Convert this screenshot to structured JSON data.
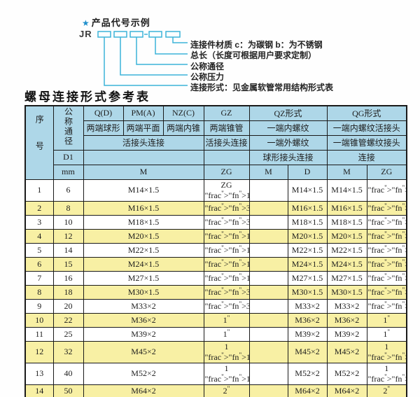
{
  "diagram": {
    "star": "★",
    "title": "产品代号示例",
    "prefix": "JR",
    "labels": [
      "连接件材质  c：为碳钢  b：为不锈钢",
      "总长（长度可根据用户要求定制）",
      "公称通径",
      "公称压力",
      "连接形式：见金属软管常用结构形式表"
    ]
  },
  "table": {
    "title": "螺母连接形式参考表",
    "header": {
      "seq": "序号",
      "nominal_diameter": "公称通径",
      "d1": "D1",
      "mm": "mm",
      "q_d": "Q(D)",
      "pm_a": "PM(A)",
      "nz_c": "NZ(C)",
      "gz": "GZ",
      "qz": "QZ形式",
      "qg": "QG形式",
      "q_sub": "两端球形",
      "pm_sub": "两端平面",
      "nz_sub": "两端内锥",
      "gz_sub": "两端锥管",
      "qz_sub1": "一端内螺纹",
      "qg_sub1": "一端内螺纹活接头",
      "left_conn": "活接头连接",
      "gz_conn": "活接头连接",
      "qz_sub2": "一端外螺纹",
      "qg_sub2": "一端锥管螺纹接头",
      "qz_conn": "球形接头连接",
      "qg_conn": "连接",
      "m_label": "M",
      "zg_label": "ZG",
      "qz_m": "M",
      "qz_d": "D",
      "qg_m": "M",
      "qg_zg": "ZG"
    },
    "rows": [
      {
        "no": "1",
        "dn": "6",
        "m": "M14×1.5",
        "gz_zg": "ZG 1/4\"",
        "qz_m": "",
        "qz_d": "M14×1.5",
        "qg_m": "M14×1.5",
        "qg_zg": "1/4\""
      },
      {
        "no": "2",
        "dn": "8",
        "m": "M16×1.5",
        "gz_zg": "3/8\"",
        "qz_m": "",
        "qz_d": "M16×1.5",
        "qg_m": "M16×1.5",
        "qg_zg": "3/8\""
      },
      {
        "no": "3",
        "dn": "10",
        "m": "M18×1.5",
        "gz_zg": "3/8\"",
        "qz_m": "",
        "qz_d": "M18×1.5",
        "qg_m": "M18×1.5",
        "qg_zg": "3/8\""
      },
      {
        "no": "4",
        "dn": "12",
        "m": "M20×1.5",
        "gz_zg": "1/2\"",
        "qz_m": "",
        "qz_d": "M20×1.5",
        "qg_m": "M20×1.5",
        "qg_zg": "1/2\""
      },
      {
        "no": "5",
        "dn": "14",
        "m": "M22×1.5",
        "gz_zg": "1/2\"",
        "qz_m": "",
        "qz_d": "M22×1.5",
        "qg_m": "M22×1.5",
        "qg_zg": "1/2\""
      },
      {
        "no": "6",
        "dn": "15",
        "m": "M24×1.5",
        "gz_zg": "1/2\"",
        "qz_m": "",
        "qz_d": "M24×1.5",
        "qg_m": "M24×1.5",
        "qg_zg": "1/2\""
      },
      {
        "no": "7",
        "dn": "16",
        "m": "M27×1.5",
        "gz_zg": "1/2\"",
        "qz_m": "",
        "qz_d": "M27×1.5",
        "qg_m": "M27×1.5",
        "qg_zg": "1/2\""
      },
      {
        "no": "8",
        "dn": "18",
        "m": "M30×1.5",
        "gz_zg": "3/4\"",
        "qz_m": "",
        "qz_d": "M30×1.5",
        "qg_m": "M30×1.5",
        "qg_zg": "3/4\""
      },
      {
        "no": "9",
        "dn": "20",
        "m": "M33×2",
        "gz_zg": "3/4\"",
        "qz_m": "",
        "qz_d": "M33×2",
        "qg_m": "M33×2",
        "qg_zg": "3/4\""
      },
      {
        "no": "10",
        "dn": "22",
        "m": "M36×2",
        "gz_zg": "1\"",
        "qz_m": "",
        "qz_d": "M36×2",
        "qg_m": "M36×2",
        "qg_zg": "1\""
      },
      {
        "no": "11",
        "dn": "25",
        "m": "M39×2",
        "gz_zg": "1\"",
        "qz_m": "",
        "qz_d": "M39×2",
        "qg_m": "M39×2",
        "qg_zg": "1\""
      },
      {
        "no": "12",
        "dn": "32",
        "m": "M45×2",
        "gz_zg": "1 1/4\"",
        "qz_m": "",
        "qz_d": "M45×2",
        "qg_m": "M45×2",
        "qg_zg": "1 1/4\""
      },
      {
        "no": "13",
        "dn": "40",
        "m": "M52×2",
        "gz_zg": "1 1/2\"",
        "qz_m": "",
        "qz_d": "M52×2",
        "qg_m": "M52×2",
        "qg_zg": "1 1/2\""
      },
      {
        "no": "14",
        "dn": "50",
        "m": "M64×2",
        "gz_zg": "2\"",
        "qz_m": "",
        "qz_d": "M64×2",
        "qg_m": "M64×2",
        "qg_zg": "2\""
      }
    ]
  },
  "colors": {
    "accent_cyan": "#3cb4d8",
    "star_blue": "#1f8fcc",
    "header_blue": "#aed7e8",
    "row_yellow": "#f8f0a4",
    "border_black": "#1a1a1a"
  }
}
